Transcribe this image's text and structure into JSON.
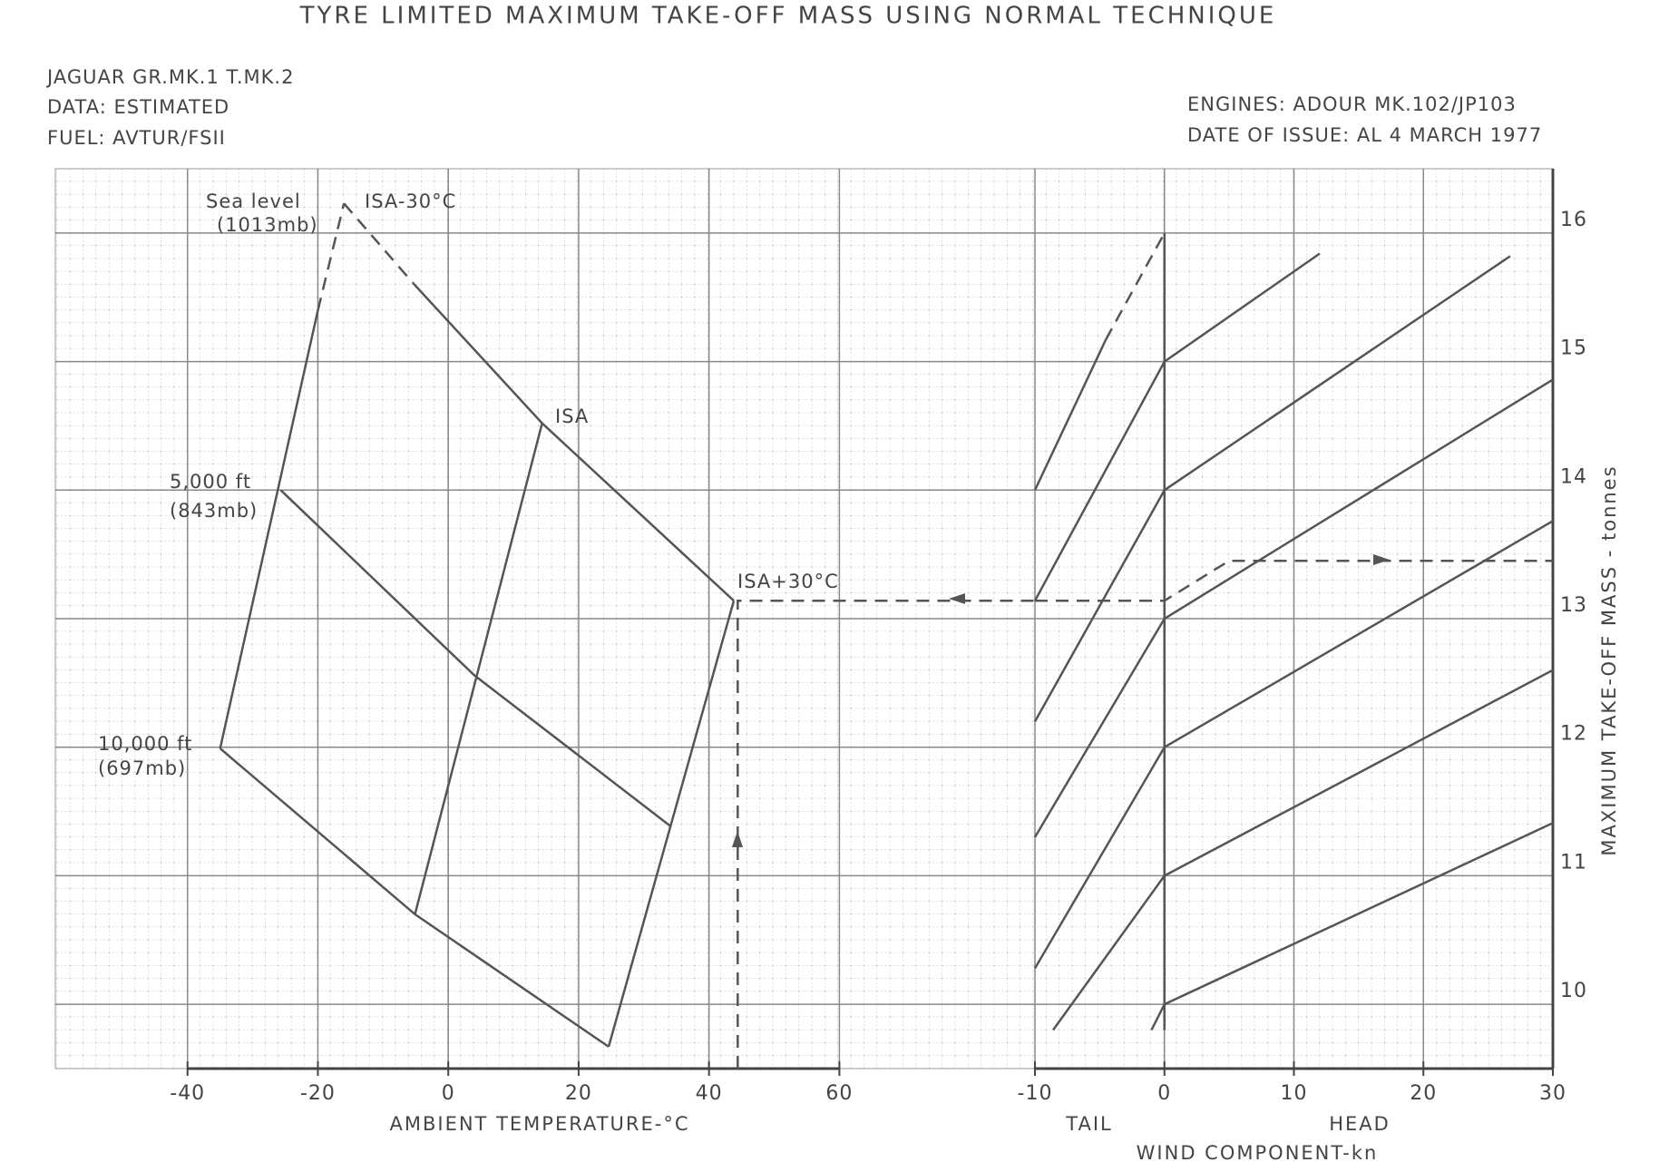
{
  "chart_data": [
    {
      "type": "line",
      "title": "TYRE LIMITED MAXIMUM TAKE-OFF MASS USING NORMAL TECHNIQUE",
      "notes": [
        "JAGUAR GR.MK.1 T.MK.2",
        "DATA: ESTIMATED",
        "FUEL: AVTUR/FSII",
        "ENGINES: ADOUR MK.102/JP103",
        "DATE OF ISSUE: AL 4 MARCH 1977"
      ],
      "xlabel": "AMBIENT TEMPERATURE-°C",
      "xlim": [
        -60,
        90
      ],
      "ylim": [
        9.5,
        16.5
      ],
      "xticks": [
        -40,
        -20,
        0,
        20,
        40,
        60
      ],
      "grid": true,
      "color": "#555555",
      "series": [
        {
          "x": [
            -16,
            -5.4
          ],
          "values": [
            16.23,
            15.61
          ],
          "line_style": "dashed"
        },
        {
          "x": [
            -5.4,
            14.4,
            43.8
          ],
          "values": [
            15.61,
            14.52,
            13.14
          ],
          "line_style": "solid"
        },
        {
          "x": [
            -25.7,
            4.0,
            34.0
          ],
          "values": [
            14.0,
            12.56,
            11.39
          ],
          "line_style": "solid"
        },
        {
          "x": [
            -35.0,
            -5.1,
            24.6
          ],
          "values": [
            11.99,
            10.7,
            9.67
          ],
          "line_style": "solid"
        },
        {
          "x": [
            -35.0,
            -20.0
          ],
          "values": [
            11.99,
            15.4
          ],
          "line_style": "solid"
        },
        {
          "x": [
            -20.0,
            -16
          ],
          "values": [
            15.4,
            16.23
          ],
          "line_style": "dashed"
        },
        {
          "x": [
            -5.1,
            14.4
          ],
          "values": [
            10.7,
            14.52
          ],
          "line_style": "solid"
        },
        {
          "x": [
            24.6,
            43.8
          ],
          "values": [
            9.67,
            13.14
          ],
          "line_style": "solid"
        },
        {
          "x": [
            44.4,
            44.4,
            90
          ],
          "values": [
            9.5,
            13.14,
            13.14
          ],
          "line_style": "dashed"
        }
      ],
      "annotations": [
        "Sea level",
        "(1013mb)",
        "ISA-30°C",
        "ISA",
        "ISA+30°C",
        "5,000 ft",
        "(843mb)",
        "10,000 ft",
        "(697mb)"
      ]
    },
    {
      "type": "line",
      "xlabel": "WIND COMPONENT-kn",
      "x_side_labels": [
        "TAIL",
        "HEAD"
      ],
      "ylabel": "MAXIMUM TAKE-OFF MASS - tonnes",
      "xlim": [
        -10,
        30
      ],
      "ylim": [
        9.5,
        16.5
      ],
      "xticks": [
        -10,
        0,
        10,
        20,
        30
      ],
      "yticks": [
        10,
        11,
        12,
        13,
        14,
        15,
        16
      ],
      "grid": true,
      "color": "#555555",
      "series": [
        {
          "x": [
            -10,
            -4.53
          ],
          "values": [
            14.0,
            15.17
          ],
          "line_style": "solid"
        },
        {
          "x": [
            -4.53,
            0
          ],
          "values": [
            15.17,
            16.0
          ],
          "line_style": "dashed"
        },
        {
          "x": [
            -10,
            0,
            12.0
          ],
          "values": [
            13.14,
            15.0,
            15.84
          ],
          "line_style": "solid"
        },
        {
          "x": [
            -10,
            0,
            26.7
          ],
          "values": [
            12.2,
            14.0,
            15.82
          ],
          "line_style": "solid"
        },
        {
          "x": [
            -10,
            0,
            30
          ],
          "values": [
            11.3,
            13.0,
            14.86
          ],
          "line_style": "solid"
        },
        {
          "x": [
            -10,
            0,
            30
          ],
          "values": [
            10.28,
            12.0,
            13.76
          ],
          "line_style": "solid"
        },
        {
          "x": [
            -8.6,
            0,
            30
          ],
          "values": [
            9.8,
            11.0,
            12.6
          ],
          "line_style": "solid"
        },
        {
          "x": [
            -1,
            0,
            30
          ],
          "values": [
            9.8,
            10.0,
            11.41
          ],
          "line_style": "solid"
        },
        {
          "x": [
            0,
            0
          ],
          "values": [
            9.8,
            16.0
          ],
          "line_style": "solid"
        },
        {
          "x": [
            -10,
            0,
            5,
            30
          ],
          "values": [
            13.14,
            13.14,
            13.45,
            13.45
          ],
          "line_style": "dashed"
        }
      ]
    }
  ]
}
